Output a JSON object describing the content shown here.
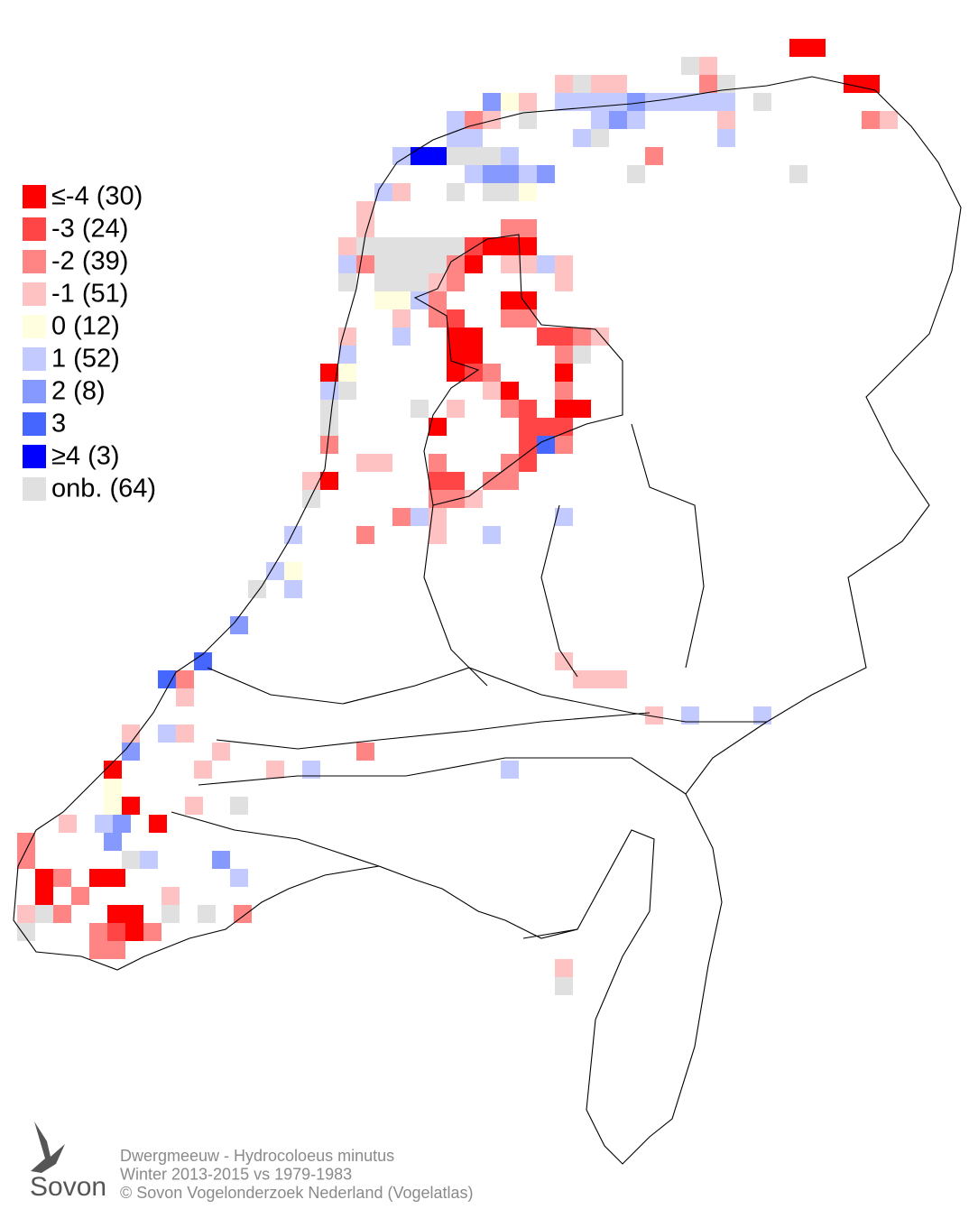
{
  "legend": {
    "items": [
      {
        "label": "≤-4 (30)",
        "color": "#ff0000"
      },
      {
        "label": "-3 (24)",
        "color": "#ff4545"
      },
      {
        "label": "-2 (39)",
        "color": "#ff8585"
      },
      {
        "label": "-1 (51)",
        "color": "#ffc2c2"
      },
      {
        "label": "0 (12)",
        "color": "#ffffdf"
      },
      {
        "label": "1 (52)",
        "color": "#c2caff"
      },
      {
        "label": "2 (8)",
        "color": "#8599ff"
      },
      {
        "label": "3",
        "color": "#4566ff"
      },
      {
        "label": "≥4 (3)",
        "color": "#0000ff"
      },
      {
        "label": "onb. (64)",
        "color": "#e0e0e0"
      }
    ]
  },
  "caption": {
    "lines": [
      "Dwergmeeuw - Hydrocoloeus minutus",
      "Winter 2013-2015 vs 1979-1983",
      "© Sovon Vogelonderzoek Nederland (Vogelatlas)"
    ]
  },
  "logo": {
    "text": "Sovon"
  }
}
